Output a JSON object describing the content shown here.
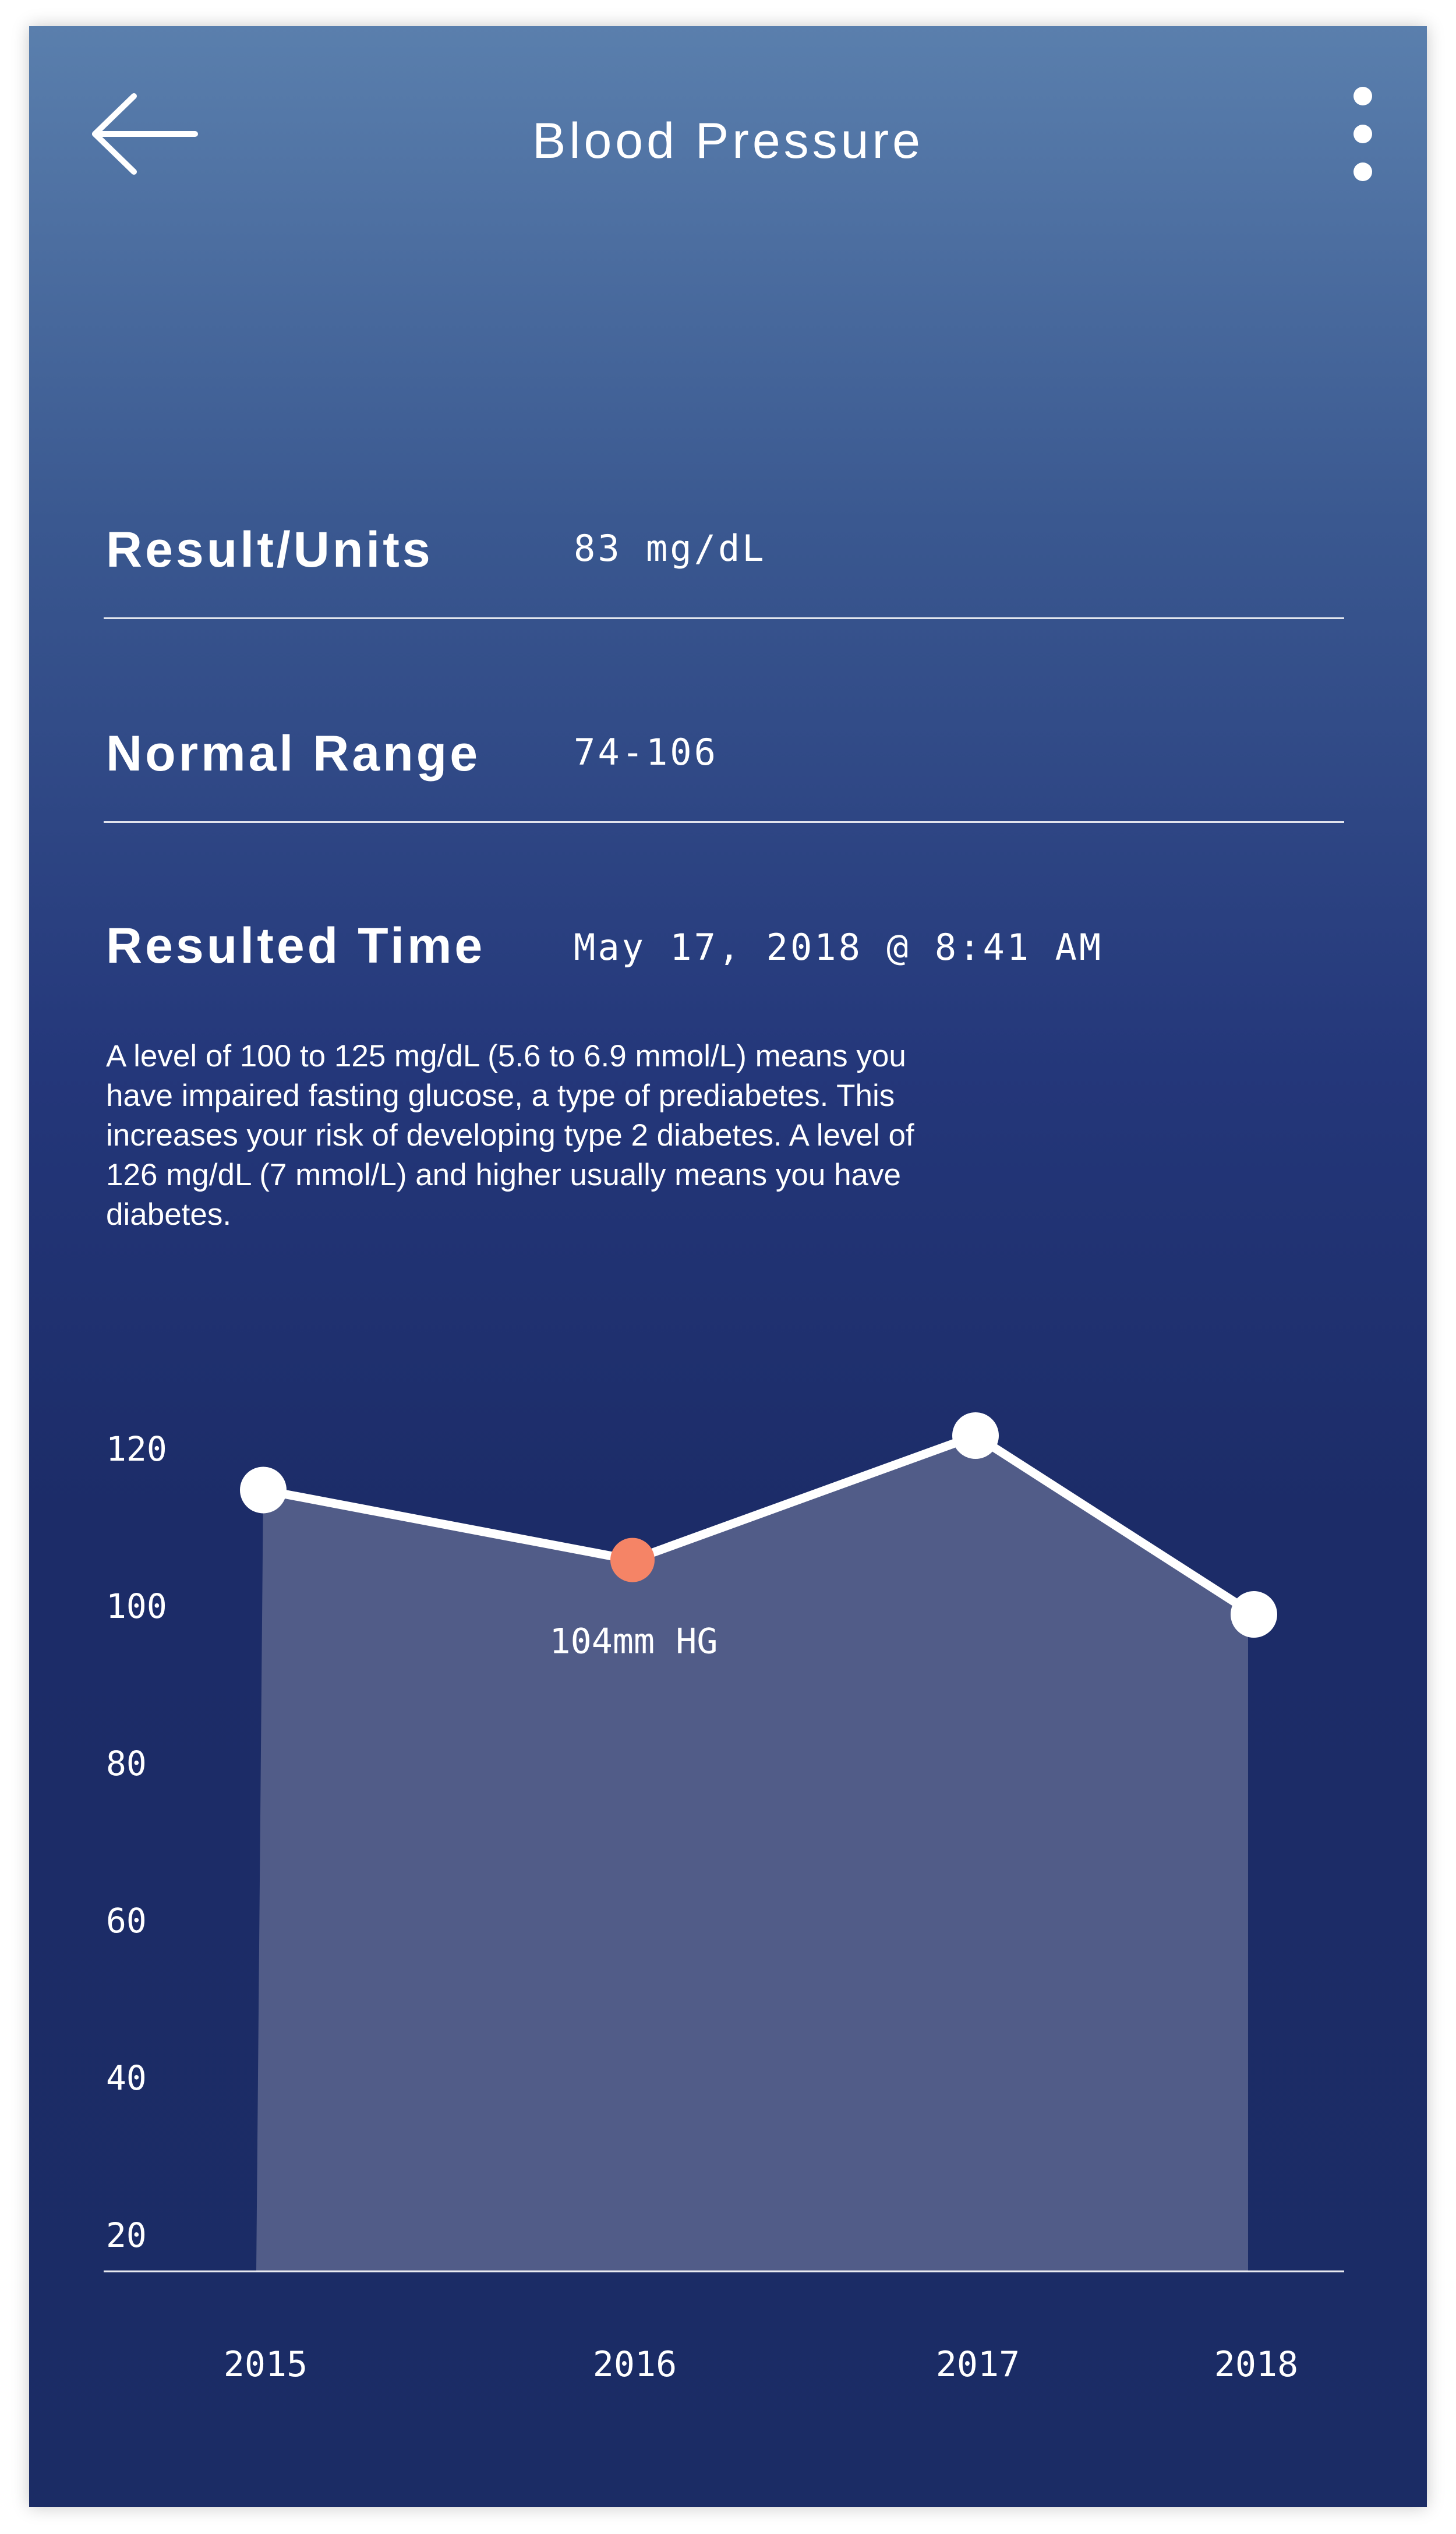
{
  "header": {
    "title": "Blood Pressure",
    "back_icon": "arrow-left-icon",
    "menu_icon": "more-vertical-icon"
  },
  "rows": [
    {
      "label": "Result/Units",
      "value": "83 mg/dL"
    },
    {
      "label": "Normal Range",
      "value": "74-106"
    },
    {
      "label": "Resulted Time",
      "value": "May 17, 2018 @ 8:41 AM"
    }
  ],
  "description": "A level of 100 to 125 mg/dL (5.6 to 6.9 mmol/L) means you have impaired fasting glucose, a type of prediabetes. This increases your risk of developing type 2 diabetes. A level of 126 mg/dL (7 mmol/L) and higher usually means you have diabetes.",
  "chart_data": {
    "type": "area",
    "categories": [
      "2015",
      "2016",
      "2017",
      "2018"
    ],
    "values": [
      113,
      104,
      120,
      97
    ],
    "y_ticks": [
      "120",
      "100",
      "80",
      "60",
      "40",
      "20"
    ],
    "ylim": [
      12.5,
      120
    ],
    "grid": false,
    "highlight_index": 1,
    "highlight_label": "104mm HG",
    "colors": {
      "line": "#ffffff",
      "fill": "#545f8a",
      "point": "#ffffff",
      "highlight_point": "#f58466"
    }
  }
}
